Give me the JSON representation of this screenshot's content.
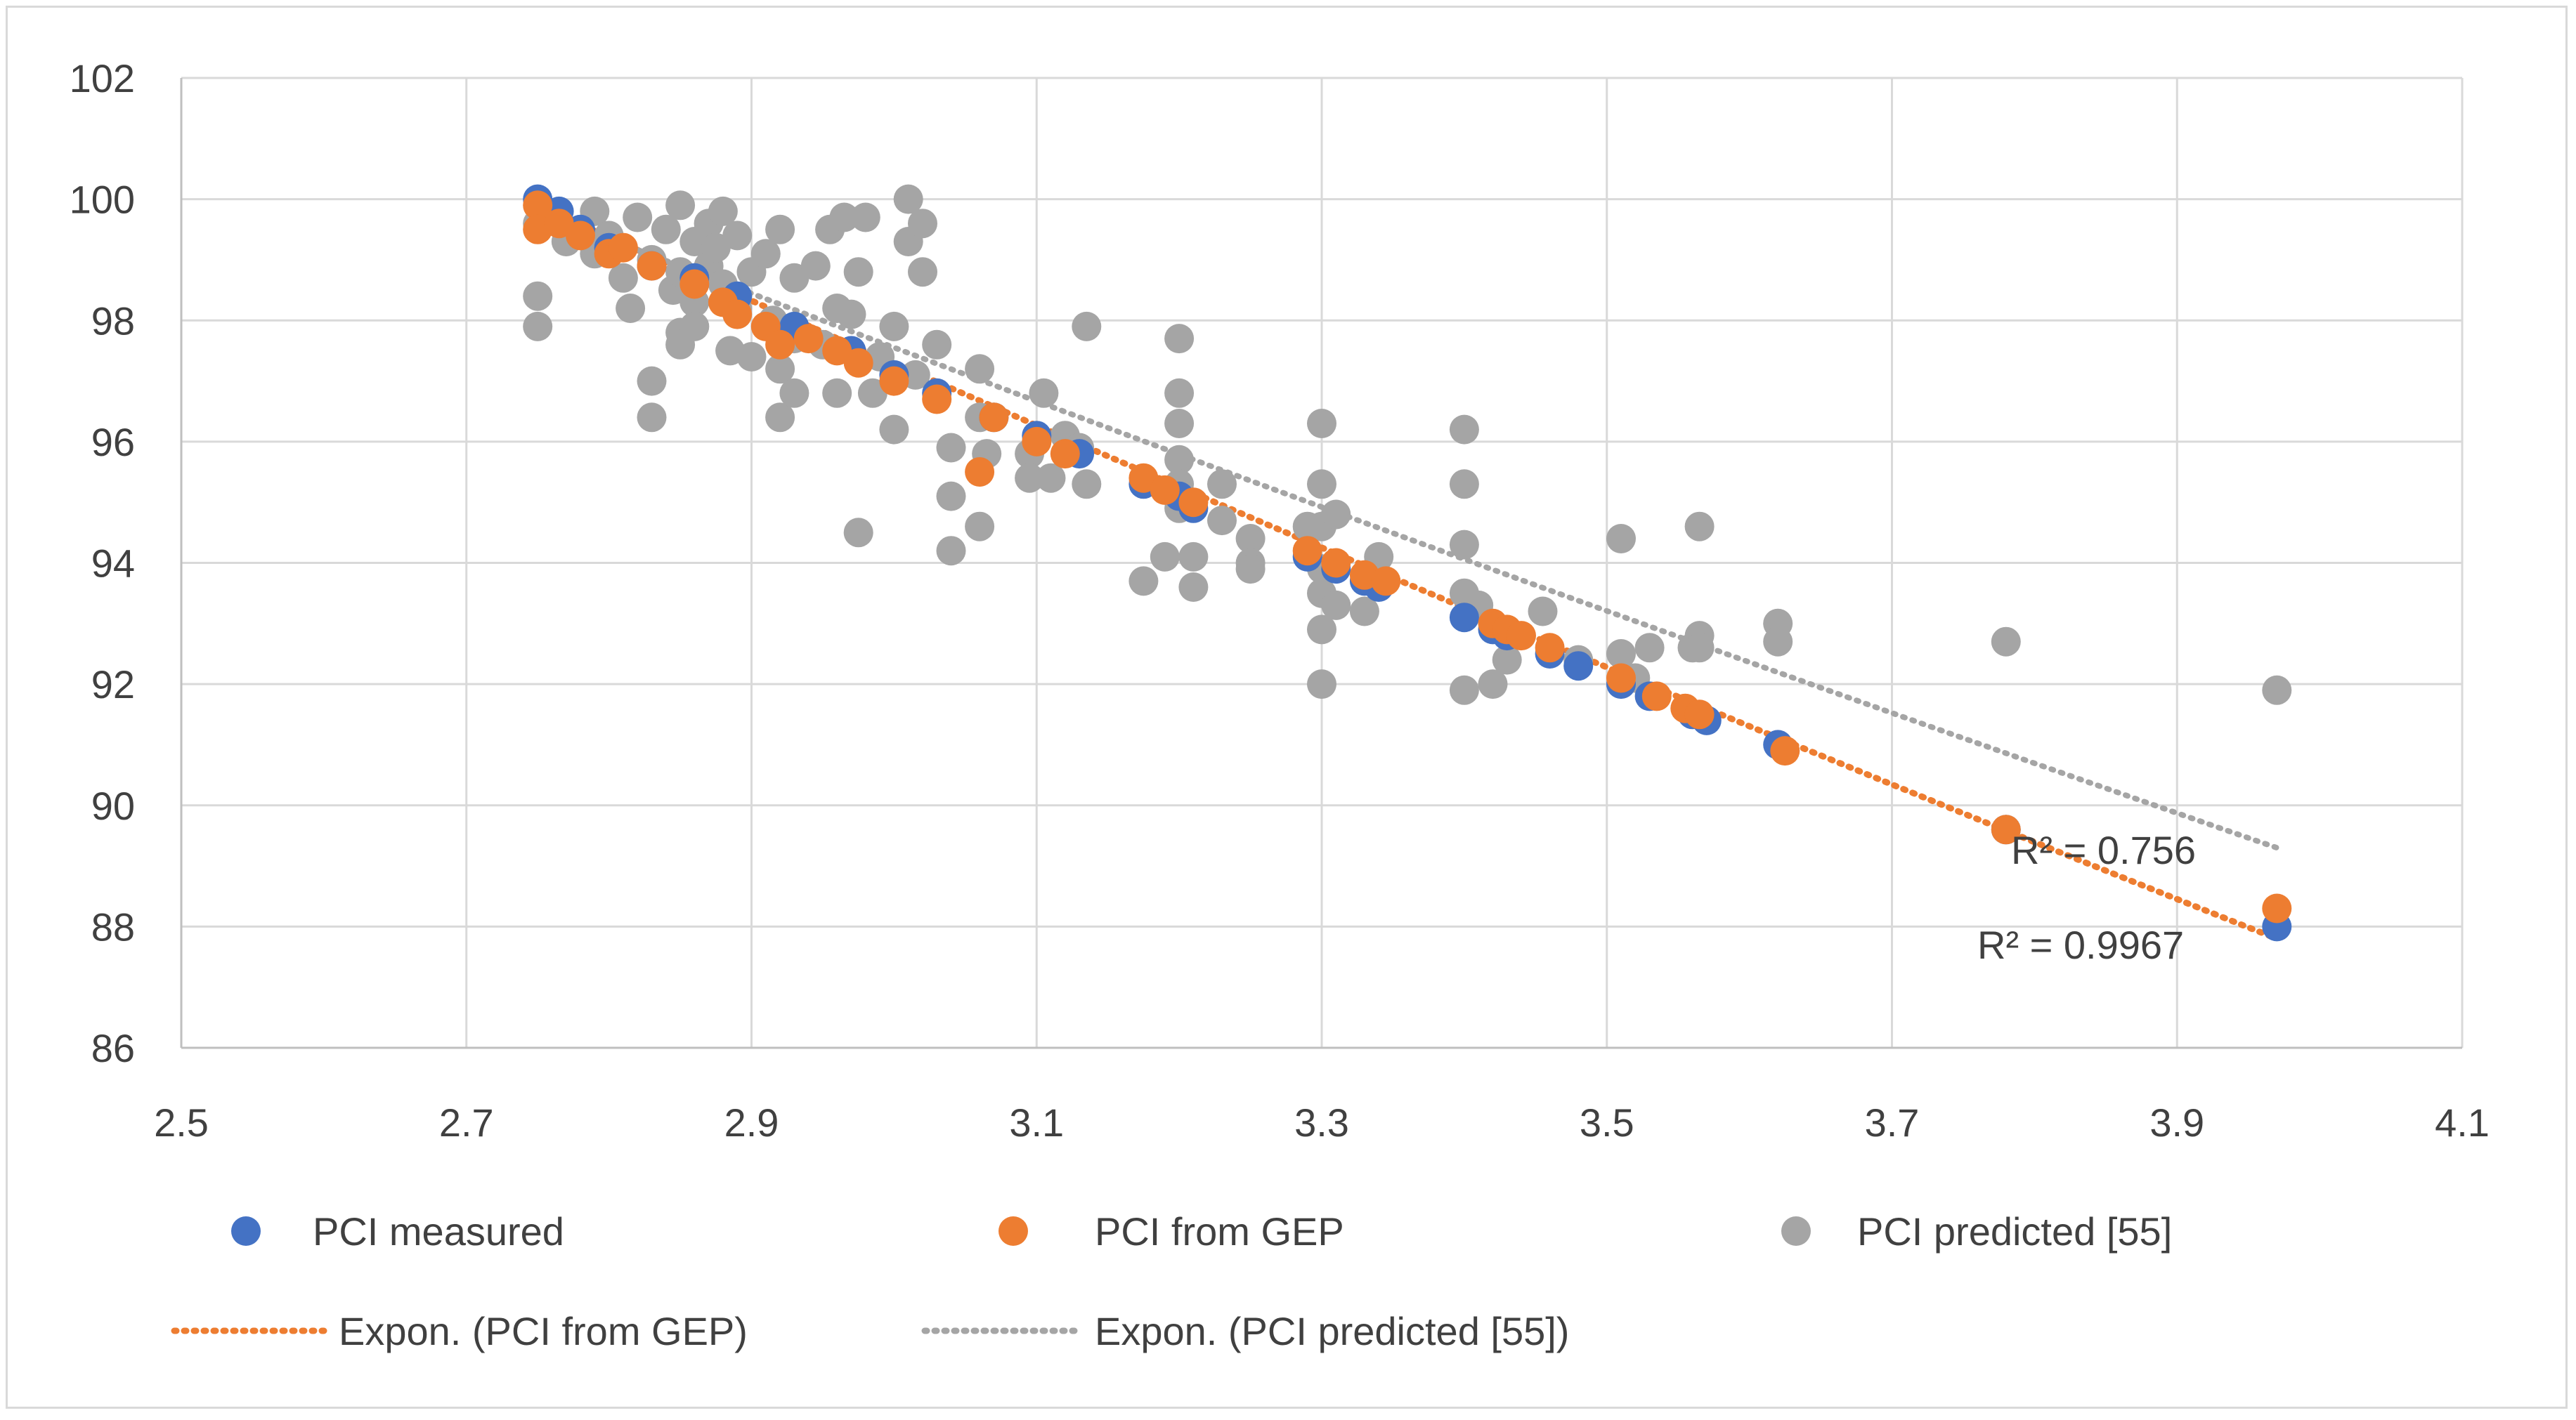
{
  "chart_data": {
    "type": "scatter",
    "title": "",
    "xlabel": "",
    "ylabel": "",
    "xlim": [
      2.5,
      4.1
    ],
    "ylim": [
      86,
      102
    ],
    "x_ticks": [
      "2.5",
      "2.7",
      "2.9",
      "3.1",
      "3.3",
      "3.5",
      "3.7",
      "3.9",
      "4.1"
    ],
    "y_ticks": [
      "86",
      "88",
      "90",
      "92",
      "94",
      "96",
      "98",
      "100",
      "102"
    ],
    "grid": true,
    "legend_position": "bottom",
    "series": [
      {
        "name": "PCI measured",
        "color": "#4472C4",
        "points": [
          [
            2.75,
            100.0
          ],
          [
            2.765,
            99.8
          ],
          [
            2.78,
            99.5
          ],
          [
            2.8,
            99.2
          ],
          [
            2.83,
            98.9
          ],
          [
            2.86,
            98.7
          ],
          [
            2.89,
            98.4
          ],
          [
            2.93,
            97.9
          ],
          [
            2.97,
            97.5
          ],
          [
            3.0,
            97.1
          ],
          [
            3.03,
            96.8
          ],
          [
            3.07,
            96.4
          ],
          [
            3.1,
            96.1
          ],
          [
            3.13,
            95.8
          ],
          [
            3.175,
            95.3
          ],
          [
            3.2,
            95.1
          ],
          [
            3.21,
            94.9
          ],
          [
            3.29,
            94.1
          ],
          [
            3.31,
            93.9
          ],
          [
            3.33,
            93.7
          ],
          [
            3.34,
            93.6
          ],
          [
            3.4,
            93.1
          ],
          [
            3.42,
            92.9
          ],
          [
            3.43,
            92.8
          ],
          [
            3.46,
            92.5
          ],
          [
            3.48,
            92.3
          ],
          [
            3.51,
            92.0
          ],
          [
            3.53,
            91.8
          ],
          [
            3.56,
            91.5
          ],
          [
            3.57,
            91.4
          ],
          [
            3.62,
            91.0
          ],
          [
            3.78,
            89.6
          ],
          [
            3.97,
            88.0
          ]
        ]
      },
      {
        "name": "PCI from GEP",
        "color": "#ED7D31",
        "points": [
          [
            2.75,
            99.9
          ],
          [
            2.75,
            99.5
          ],
          [
            2.765,
            99.6
          ],
          [
            2.78,
            99.4
          ],
          [
            2.8,
            99.1
          ],
          [
            2.81,
            99.2
          ],
          [
            2.83,
            98.9
          ],
          [
            2.86,
            98.6
          ],
          [
            2.88,
            98.3
          ],
          [
            2.89,
            98.1
          ],
          [
            2.91,
            97.9
          ],
          [
            2.92,
            97.6
          ],
          [
            2.94,
            97.7
          ],
          [
            2.96,
            97.5
          ],
          [
            2.975,
            97.3
          ],
          [
            3.0,
            97.0
          ],
          [
            3.03,
            96.7
          ],
          [
            3.06,
            95.5
          ],
          [
            3.07,
            96.4
          ],
          [
            3.1,
            96.0
          ],
          [
            3.12,
            95.8
          ],
          [
            3.175,
            95.4
          ],
          [
            3.19,
            95.2
          ],
          [
            3.21,
            95.0
          ],
          [
            3.29,
            94.2
          ],
          [
            3.31,
            94.0
          ],
          [
            3.33,
            93.8
          ],
          [
            3.345,
            93.7
          ],
          [
            3.42,
            93.0
          ],
          [
            3.43,
            92.9
          ],
          [
            3.44,
            92.8
          ],
          [
            3.46,
            92.6
          ],
          [
            3.51,
            92.1
          ],
          [
            3.535,
            91.8
          ],
          [
            3.555,
            91.6
          ],
          [
            3.565,
            91.5
          ],
          [
            3.625,
            90.9
          ],
          [
            3.78,
            89.6
          ],
          [
            3.97,
            88.3
          ]
        ]
      },
      {
        "name": "PCI predicted [55]",
        "color": "#A5A5A5",
        "points": [
          [
            2.75,
            99.6
          ],
          [
            2.75,
            98.4
          ],
          [
            2.75,
            97.9
          ],
          [
            2.77,
            99.3
          ],
          [
            2.79,
            99.8
          ],
          [
            2.79,
            99.1
          ],
          [
            2.8,
            99.4
          ],
          [
            2.81,
            98.7
          ],
          [
            2.815,
            98.2
          ],
          [
            2.82,
            99.7
          ],
          [
            2.83,
            99.0
          ],
          [
            2.83,
            97.0
          ],
          [
            2.83,
            96.4
          ],
          [
            2.84,
            99.5
          ],
          [
            2.845,
            98.5
          ],
          [
            2.85,
            99.9
          ],
          [
            2.85,
            98.8
          ],
          [
            2.85,
            97.8
          ],
          [
            2.85,
            97.6
          ],
          [
            2.86,
            99.3
          ],
          [
            2.86,
            98.3
          ],
          [
            2.86,
            97.9
          ],
          [
            2.87,
            99.6
          ],
          [
            2.87,
            98.9
          ],
          [
            2.875,
            99.2
          ],
          [
            2.88,
            99.8
          ],
          [
            2.88,
            98.6
          ],
          [
            2.885,
            97.5
          ],
          [
            2.89,
            99.4
          ],
          [
            2.89,
            98.2
          ],
          [
            2.9,
            98.8
          ],
          [
            2.9,
            97.4
          ],
          [
            2.91,
            99.1
          ],
          [
            2.915,
            98.0
          ],
          [
            2.92,
            99.5
          ],
          [
            2.92,
            97.2
          ],
          [
            2.92,
            96.4
          ],
          [
            2.93,
            98.7
          ],
          [
            2.93,
            97.7
          ],
          [
            2.93,
            96.8
          ],
          [
            2.945,
            98.9
          ],
          [
            2.95,
            97.6
          ],
          [
            2.955,
            99.5
          ],
          [
            2.96,
            98.2
          ],
          [
            2.96,
            96.8
          ],
          [
            2.965,
            99.7
          ],
          [
            2.97,
            98.1
          ],
          [
            2.975,
            98.8
          ],
          [
            2.975,
            94.5
          ],
          [
            2.98,
            99.7
          ],
          [
            2.985,
            96.8
          ],
          [
            2.99,
            97.4
          ],
          [
            3.0,
            97.9
          ],
          [
            3.0,
            96.2
          ],
          [
            3.01,
            100.0
          ],
          [
            3.01,
            99.3
          ],
          [
            3.015,
            97.1
          ],
          [
            3.02,
            99.6
          ],
          [
            3.02,
            98.8
          ],
          [
            3.03,
            97.6
          ],
          [
            3.04,
            95.9
          ],
          [
            3.04,
            95.1
          ],
          [
            3.04,
            94.2
          ],
          [
            3.06,
            97.2
          ],
          [
            3.06,
            96.4
          ],
          [
            3.06,
            94.6
          ],
          [
            3.065,
            95.8
          ],
          [
            3.095,
            95.8
          ],
          [
            3.095,
            95.4
          ],
          [
            3.105,
            96.8
          ],
          [
            3.11,
            95.4
          ],
          [
            3.12,
            96.1
          ],
          [
            3.13,
            95.9
          ],
          [
            3.135,
            97.9
          ],
          [
            3.135,
            95.3
          ],
          [
            3.175,
            93.7
          ],
          [
            3.19,
            94.1
          ],
          [
            3.2,
            97.7
          ],
          [
            3.2,
            96.8
          ],
          [
            3.2,
            96.3
          ],
          [
            3.2,
            95.7
          ],
          [
            3.2,
            95.3
          ],
          [
            3.2,
            94.9
          ],
          [
            3.21,
            94.1
          ],
          [
            3.21,
            93.6
          ],
          [
            3.23,
            95.3
          ],
          [
            3.23,
            94.7
          ],
          [
            3.25,
            94.4
          ],
          [
            3.25,
            94.0
          ],
          [
            3.25,
            93.9
          ],
          [
            3.29,
            94.6
          ],
          [
            3.3,
            96.3
          ],
          [
            3.3,
            95.3
          ],
          [
            3.3,
            94.6
          ],
          [
            3.3,
            93.9
          ],
          [
            3.3,
            93.5
          ],
          [
            3.3,
            92.9
          ],
          [
            3.3,
            92.0
          ],
          [
            3.31,
            94.8
          ],
          [
            3.31,
            93.3
          ],
          [
            3.33,
            93.2
          ],
          [
            3.34,
            94.1
          ],
          [
            3.4,
            96.2
          ],
          [
            3.4,
            95.3
          ],
          [
            3.4,
            94.3
          ],
          [
            3.4,
            93.5
          ],
          [
            3.4,
            91.9
          ],
          [
            3.41,
            93.3
          ],
          [
            3.42,
            92.0
          ],
          [
            3.43,
            92.4
          ],
          [
            3.455,
            93.2
          ],
          [
            3.48,
            92.4
          ],
          [
            3.51,
            94.4
          ],
          [
            3.51,
            92.5
          ],
          [
            3.52,
            92.1
          ],
          [
            3.53,
            92.6
          ],
          [
            3.56,
            92.6
          ],
          [
            3.565,
            94.6
          ],
          [
            3.565,
            92.8
          ],
          [
            3.565,
            92.6
          ],
          [
            3.62,
            93.0
          ],
          [
            3.62,
            92.7
          ],
          [
            3.78,
            92.7
          ],
          [
            3.97,
            91.9
          ]
        ]
      }
    ],
    "trendlines": [
      {
        "name": "Expon. (PCI from GEP)",
        "color": "#ED7D31",
        "x_range": [
          2.75,
          3.97
        ],
        "y_range": [
          99.9,
          87.8
        ],
        "r_squared_label": "R² = 0.9967"
      },
      {
        "name": "Expon. (PCI predicted [55])",
        "color": "#A5A5A5",
        "x_range": [
          2.75,
          3.97
        ],
        "y_range": [
          99.8,
          89.3
        ],
        "r_squared_label": "R² = 0.756"
      }
    ]
  }
}
